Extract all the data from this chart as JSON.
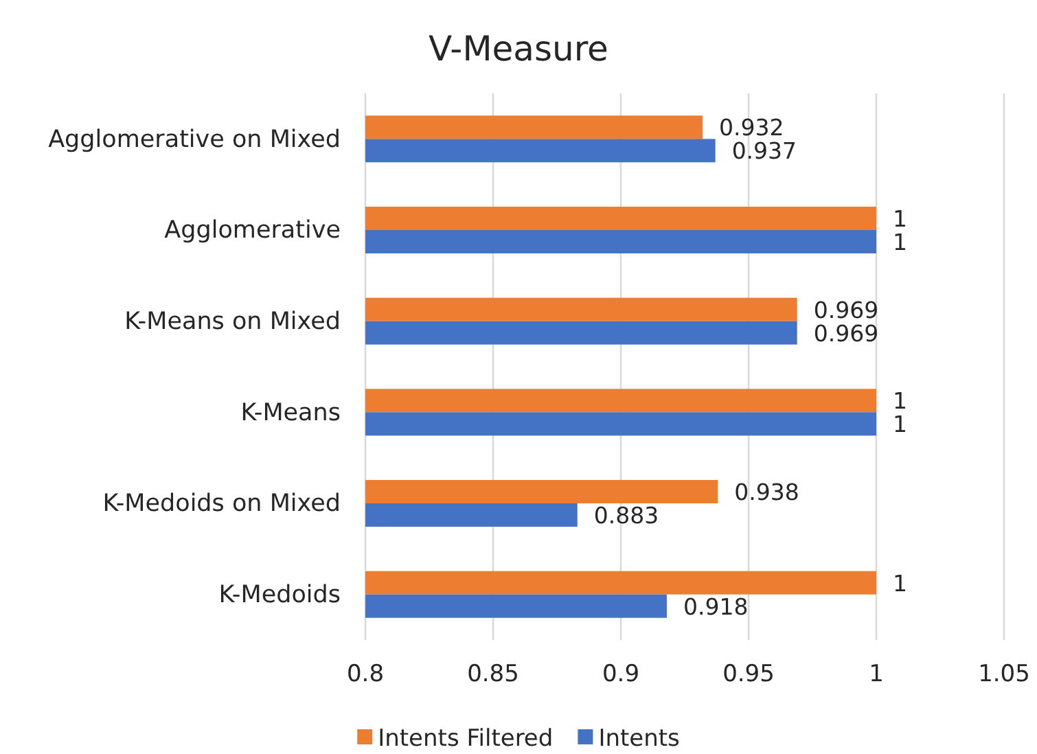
{
  "chart_data": {
    "type": "bar",
    "orientation": "horizontal",
    "title": "V-Measure",
    "categories": [
      "Agglomerative on Mixed",
      "Agglomerative",
      "K-Means on Mixed",
      "K-Means",
      "K-Medoids on Mixed",
      "K-Medoids"
    ],
    "series": [
      {
        "name": "Intents Filtered",
        "color": "#ed7d31",
        "values": [
          0.932,
          1,
          0.969,
          1,
          0.938,
          1
        ]
      },
      {
        "name": "Intents",
        "color": "#4472c4",
        "values": [
          0.937,
          1,
          0.969,
          1,
          0.883,
          0.918
        ]
      }
    ],
    "xlim": [
      0.8,
      1.05
    ],
    "xticks": [
      0.8,
      0.85,
      0.9,
      0.95,
      1,
      1.05
    ],
    "grid": "x",
    "legend": "bottom",
    "data_labels": true
  }
}
